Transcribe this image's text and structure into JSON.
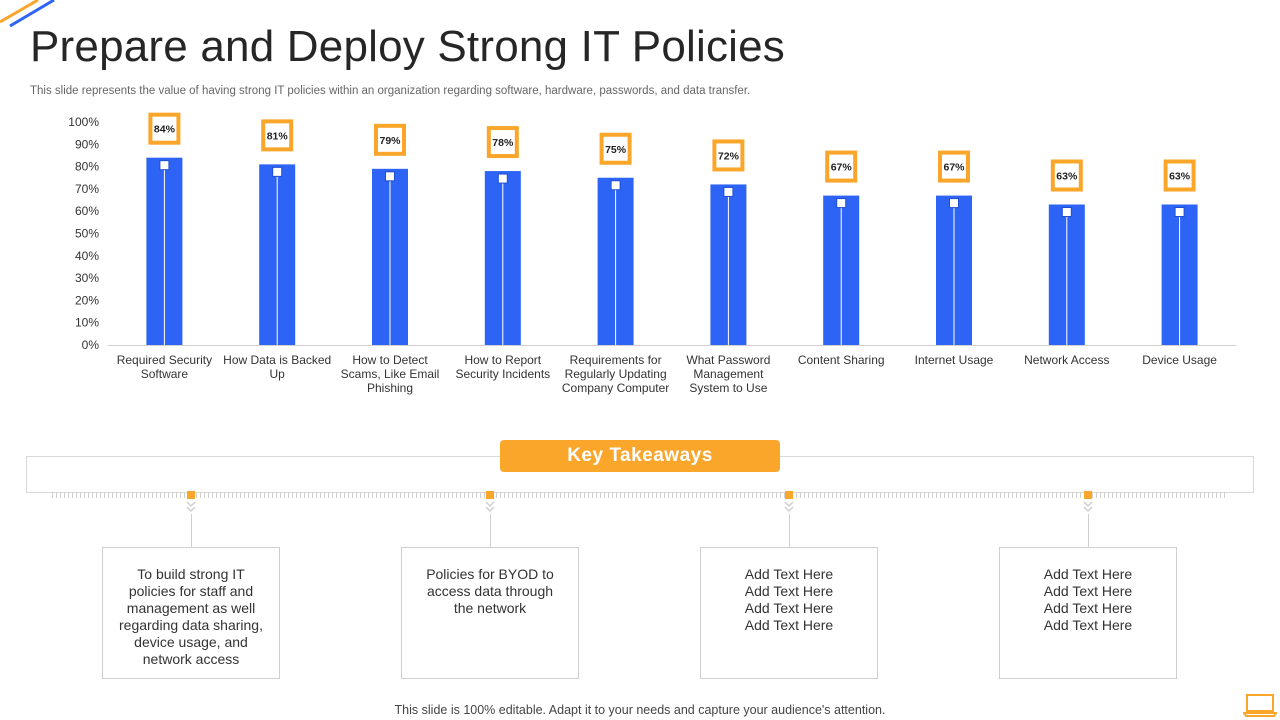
{
  "page": {
    "title": "Prepare and Deploy Strong IT Policies",
    "subtitle": "This slide represents the value of having strong IT  policies within an organization regarding software, hardware, passwords, and data transfer.",
    "footer": "This slide is 100% editable. Adapt it to your needs and capture your audience's attention."
  },
  "colors": {
    "bar": "#2e64f5",
    "accent": "#f9a62b"
  },
  "chart_data": {
    "type": "bar",
    "categories": [
      [
        "Required Security",
        "Software"
      ],
      [
        "How Data is Backed",
        "Up"
      ],
      [
        "How to Detect",
        "Scams, Like Email",
        "Phishing"
      ],
      [
        "How to Report",
        "Security Incidents"
      ],
      [
        "Requirements for",
        "Regularly Updating",
        "Company Computer"
      ],
      [
        "What Password",
        "Management",
        "System to Use"
      ],
      [
        "Content Sharing"
      ],
      [
        "Internet Usage"
      ],
      [
        "Network Access"
      ],
      [
        "Device Usage"
      ]
    ],
    "values": [
      84,
      81,
      79,
      78,
      75,
      72,
      67,
      67,
      63,
      63
    ],
    "data_labels": [
      "84%",
      "81%",
      "79%",
      "78%",
      "75%",
      "72%",
      "67%",
      "67%",
      "63%",
      "63%"
    ],
    "y_ticks": [
      "0%",
      "10%",
      "20%",
      "30%",
      "40%",
      "50%",
      "60%",
      "70%",
      "80%",
      "90%",
      "100%"
    ],
    "ylim": [
      0,
      100
    ],
    "grid": false
  },
  "takeaways": {
    "heading": "Key Takeaways",
    "cards": [
      {
        "lines": [
          "To build strong IT",
          "policies for staff and",
          "management as well",
          "regarding data sharing,",
          "device usage, and",
          "network access"
        ]
      },
      {
        "lines": [
          "Policies for BYOD to",
          "access data through",
          "the network"
        ]
      },
      {
        "lines": [
          "Add Text Here",
          "Add Text Here",
          "Add Text Here",
          "Add Text Here"
        ]
      },
      {
        "lines": [
          "Add Text Here",
          "Add Text Here",
          "Add Text Here",
          "Add Text Here"
        ]
      }
    ]
  }
}
